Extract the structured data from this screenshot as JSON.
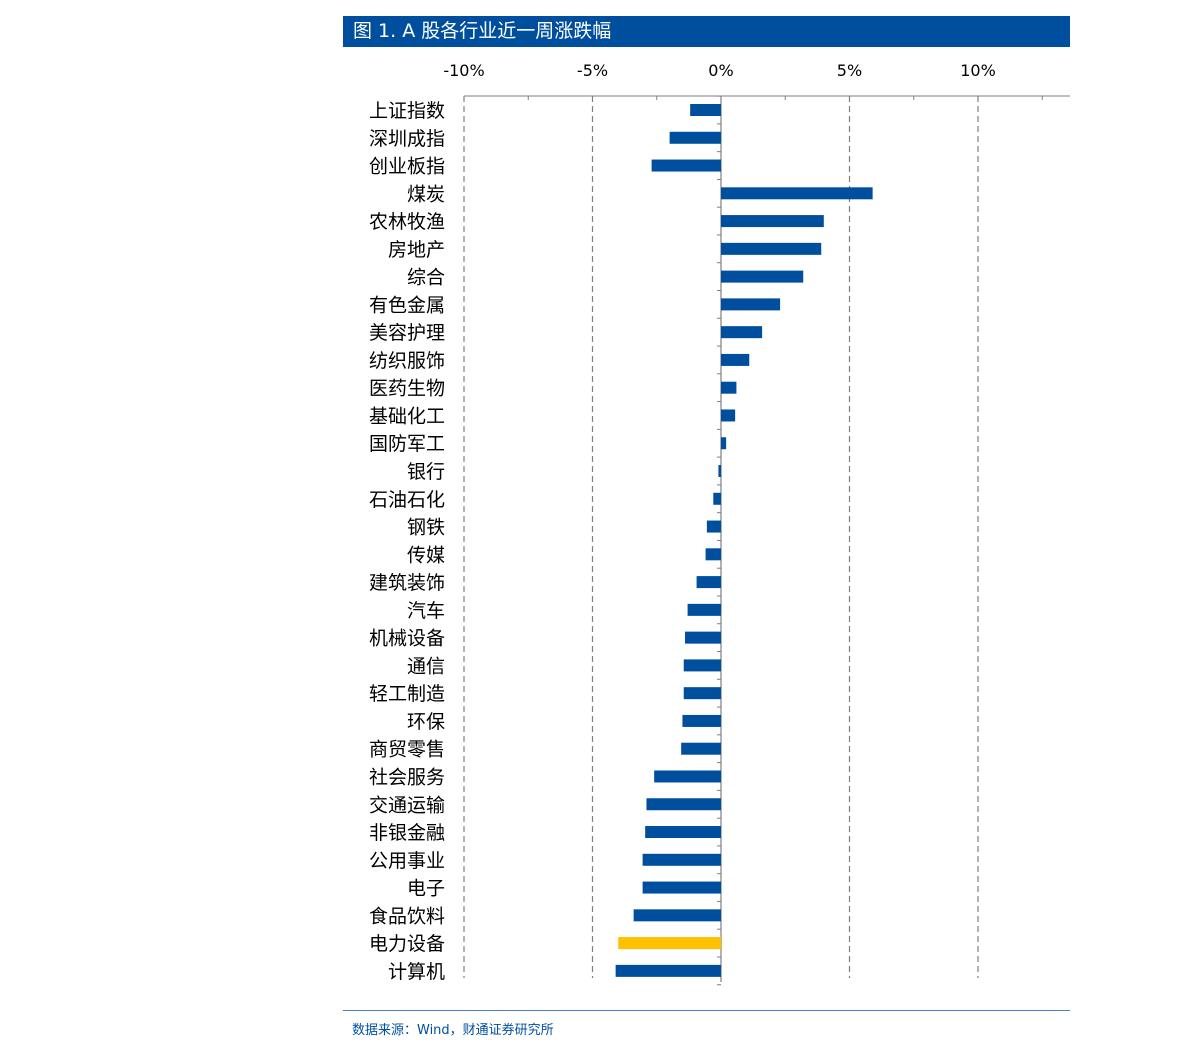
{
  "title": "图 1. A 股各行业近一周涨跌幅",
  "source": "数据来源：Wind，财通证券研究所",
  "colors": {
    "bar": "#004f9f",
    "highlight": "#ffc000",
    "title_bg": "#004f9f",
    "grid": "#7f7f7f"
  },
  "chart_data": {
    "type": "bar",
    "orientation": "horizontal",
    "xlim": [
      -10,
      13.5
    ],
    "ticks": [
      -10,
      -5,
      0,
      5,
      10
    ],
    "tick_labels": [
      "-10%",
      "-5%",
      "0%",
      "5%",
      "10%"
    ],
    "grid": "vertical dashed",
    "categories": [
      "上证指数",
      "深圳成指",
      "创业板指",
      "煤炭",
      "农林牧渔",
      "房地产",
      "综合",
      "有色金属",
      "美容护理",
      "纺织服饰",
      "医药生物",
      "基础化工",
      "国防军工",
      "银行",
      "石油石化",
      "钢铁",
      "传媒",
      "建筑装饰",
      "汽车",
      "机械设备",
      "通信",
      "轻工制造",
      "环保",
      "商贸零售",
      "社会服务",
      "交通运输",
      "非银金融",
      "公用事业",
      "电子",
      "食品饮料",
      "电力设备",
      "计算机"
    ],
    "values": [
      -1.2,
      -2.0,
      -2.7,
      5.9,
      4.0,
      3.9,
      3.2,
      2.3,
      1.6,
      1.1,
      0.6,
      0.55,
      0.2,
      -0.1,
      -0.3,
      -0.55,
      -0.6,
      -0.95,
      -1.3,
      -1.4,
      -1.45,
      -1.45,
      -1.5,
      -1.55,
      -2.6,
      -2.9,
      -2.95,
      -3.05,
      -3.05,
      -3.4,
      -4.0,
      -4.1
    ],
    "highlight_category": "电力设备"
  }
}
